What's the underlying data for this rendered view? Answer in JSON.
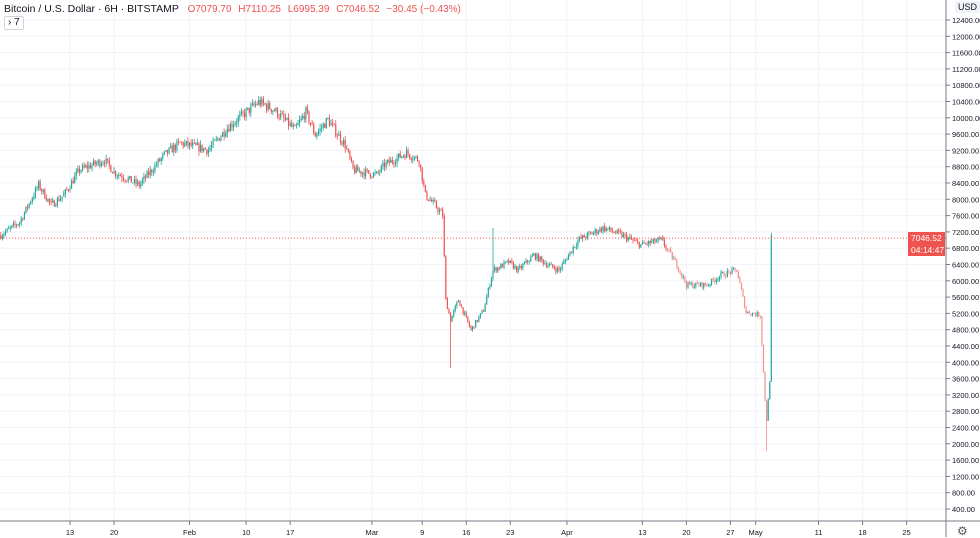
{
  "header": {
    "symbol_title": "Bitcoin / U.S. Dollar · 6H · BITSTAMP",
    "open": "O7079.70",
    "high": "H7110.25",
    "low": "L6995.39",
    "close": "C7046.52",
    "change": "−30.45 (−0.43%)",
    "indicators_toggle": "› 7"
  },
  "price_axis": {
    "currency": "USD",
    "settings_icon": "gear-icon",
    "last_price_label": "7046.52",
    "countdown_label": "04:14:47"
  },
  "colors": {
    "up": "#26a69a",
    "down": "#ef5350",
    "down_faded": "#f78f8d",
    "last_price": "#ef5350",
    "grid": "#f0f3fa"
  },
  "chart_data": {
    "type": "candlestick",
    "interval": "6H",
    "grid": true,
    "last_price": 7046.52,
    "ylim": [
      200,
      12800
    ],
    "y_ticks": [
      "400.00",
      "800.00",
      "1200.00",
      "1600.00",
      "2000.00",
      "2400.00",
      "2800.00",
      "3200.00",
      "3600.00",
      "4000.00",
      "4400.00",
      "4800.00",
      "5200.00",
      "5600.00",
      "6000.00",
      "6400.00",
      "6800.00",
      "7200.00",
      "7600.00",
      "8000.00",
      "8400.00",
      "8800.00",
      "9200.00",
      "9600.00",
      "10000.00",
      "10400.00",
      "10800.00",
      "11200.00",
      "11600.00",
      "12000.00",
      "12400.00"
    ],
    "x_ticks": [
      {
        "label": "13",
        "date": "01-13"
      },
      {
        "label": "20",
        "date": "01-20"
      },
      {
        "label": "Feb",
        "date": "02-01"
      },
      {
        "label": "10",
        "date": "02-10"
      },
      {
        "label": "17",
        "date": "02-17"
      },
      {
        "label": "Mar",
        "date": "03-01"
      },
      {
        "label": "9",
        "date": "03-09"
      },
      {
        "label": "16",
        "date": "03-16"
      },
      {
        "label": "23",
        "date": "03-23"
      },
      {
        "label": "Apr",
        "date": "04-01"
      },
      {
        "label": "13",
        "date": "04-13"
      },
      {
        "label": "20",
        "date": "04-20"
      },
      {
        "label": "27",
        "date": "04-27"
      },
      {
        "label": "May",
        "date": "05-01"
      },
      {
        "label": "11",
        "date": "05-11"
      },
      {
        "label": "18",
        "date": "05-18"
      },
      {
        "label": "25",
        "date": "05-25"
      }
    ],
    "price_path": [
      {
        "t": "01-02 00",
        "c": 7120
      },
      {
        "t": "01-05 00",
        "c": 7440
      },
      {
        "t": "01-08 00",
        "c": 8350
      },
      {
        "t": "01-10 00",
        "c": 7860
      },
      {
        "t": "01-12 00",
        "c": 8100
      },
      {
        "t": "01-14 12",
        "c": 8720
      },
      {
        "t": "01-18 12",
        "c": 8960
      },
      {
        "t": "01-20 00",
        "c": 8670
      },
      {
        "t": "01-24 00",
        "c": 8350
      },
      {
        "t": "01-28 00",
        "c": 9090
      },
      {
        "t": "01-30 12",
        "c": 9380
      },
      {
        "t": "02-04 00",
        "c": 9210
      },
      {
        "t": "02-07 00",
        "c": 9750
      },
      {
        "t": "02-12 00",
        "c": 10390
      },
      {
        "t": "02-14 12",
        "c": 10190
      },
      {
        "t": "02-17 18",
        "c": 9700
      },
      {
        "t": "02-19 12",
        "c": 10140
      },
      {
        "t": "02-21 00",
        "c": 9580
      },
      {
        "t": "02-23 00",
        "c": 9950
      },
      {
        "t": "02-25 18",
        "c": 9330
      },
      {
        "t": "02-27 00",
        "c": 8720
      },
      {
        "t": "03-01 18",
        "c": 8600
      },
      {
        "t": "03-03 00",
        "c": 8840
      },
      {
        "t": "03-06 12",
        "c": 9140
      },
      {
        "t": "03-08 12",
        "c": 8960
      },
      {
        "t": "03-09 12",
        "c": 8100
      },
      {
        "t": "03-11 00",
        "c": 7860
      },
      {
        "t": "03-12 06",
        "c": 7610
      },
      {
        "t": "03-12 18",
        "c": 5530
      },
      {
        "t": "03-13 12",
        "c": 5040,
        "l": 3860
      },
      {
        "t": "03-14 18",
        "c": 5530
      },
      {
        "t": "03-16 18",
        "c": 4790
      },
      {
        "t": "03-18 18",
        "c": 5280
      },
      {
        "t": "03-20 06",
        "c": 6260,
        "h": 7300
      },
      {
        "t": "03-22 18",
        "c": 6460
      },
      {
        "t": "03-24 06",
        "c": 6260
      },
      {
        "t": "03-26 18",
        "c": 6630
      },
      {
        "t": "03-29 00",
        "c": 6390
      },
      {
        "t": "03-30 18",
        "c": 6260
      },
      {
        "t": "04-02 18",
        "c": 7000
      },
      {
        "t": "04-06 18",
        "c": 7300
      },
      {
        "t": "04-09 18",
        "c": 7120
      },
      {
        "t": "04-12 18",
        "c": 6880
      },
      {
        "t": "04-16 00",
        "c": 7000
      },
      {
        "t": "04-18 12",
        "c": 6390
      },
      {
        "t": "04-20 00",
        "c": 5900
      },
      {
        "t": "04-23 06",
        "c": 5900
      },
      {
        "t": "04-25 12",
        "c": 6140
      },
      {
        "t": "04-28 00",
        "c": 6260
      },
      {
        "t": "04-29 12",
        "c": 5230
      },
      {
        "t": "05-01 18",
        "c": 5160
      },
      {
        "t": "05-02 12",
        "c": 3070
      },
      {
        "t": "05-02 18",
        "c": 2580,
        "l": 1820
      },
      {
        "t": "05-03 06",
        "c": 3560
      },
      {
        "t": "05-03 12",
        "c": 7046.52
      }
    ]
  }
}
